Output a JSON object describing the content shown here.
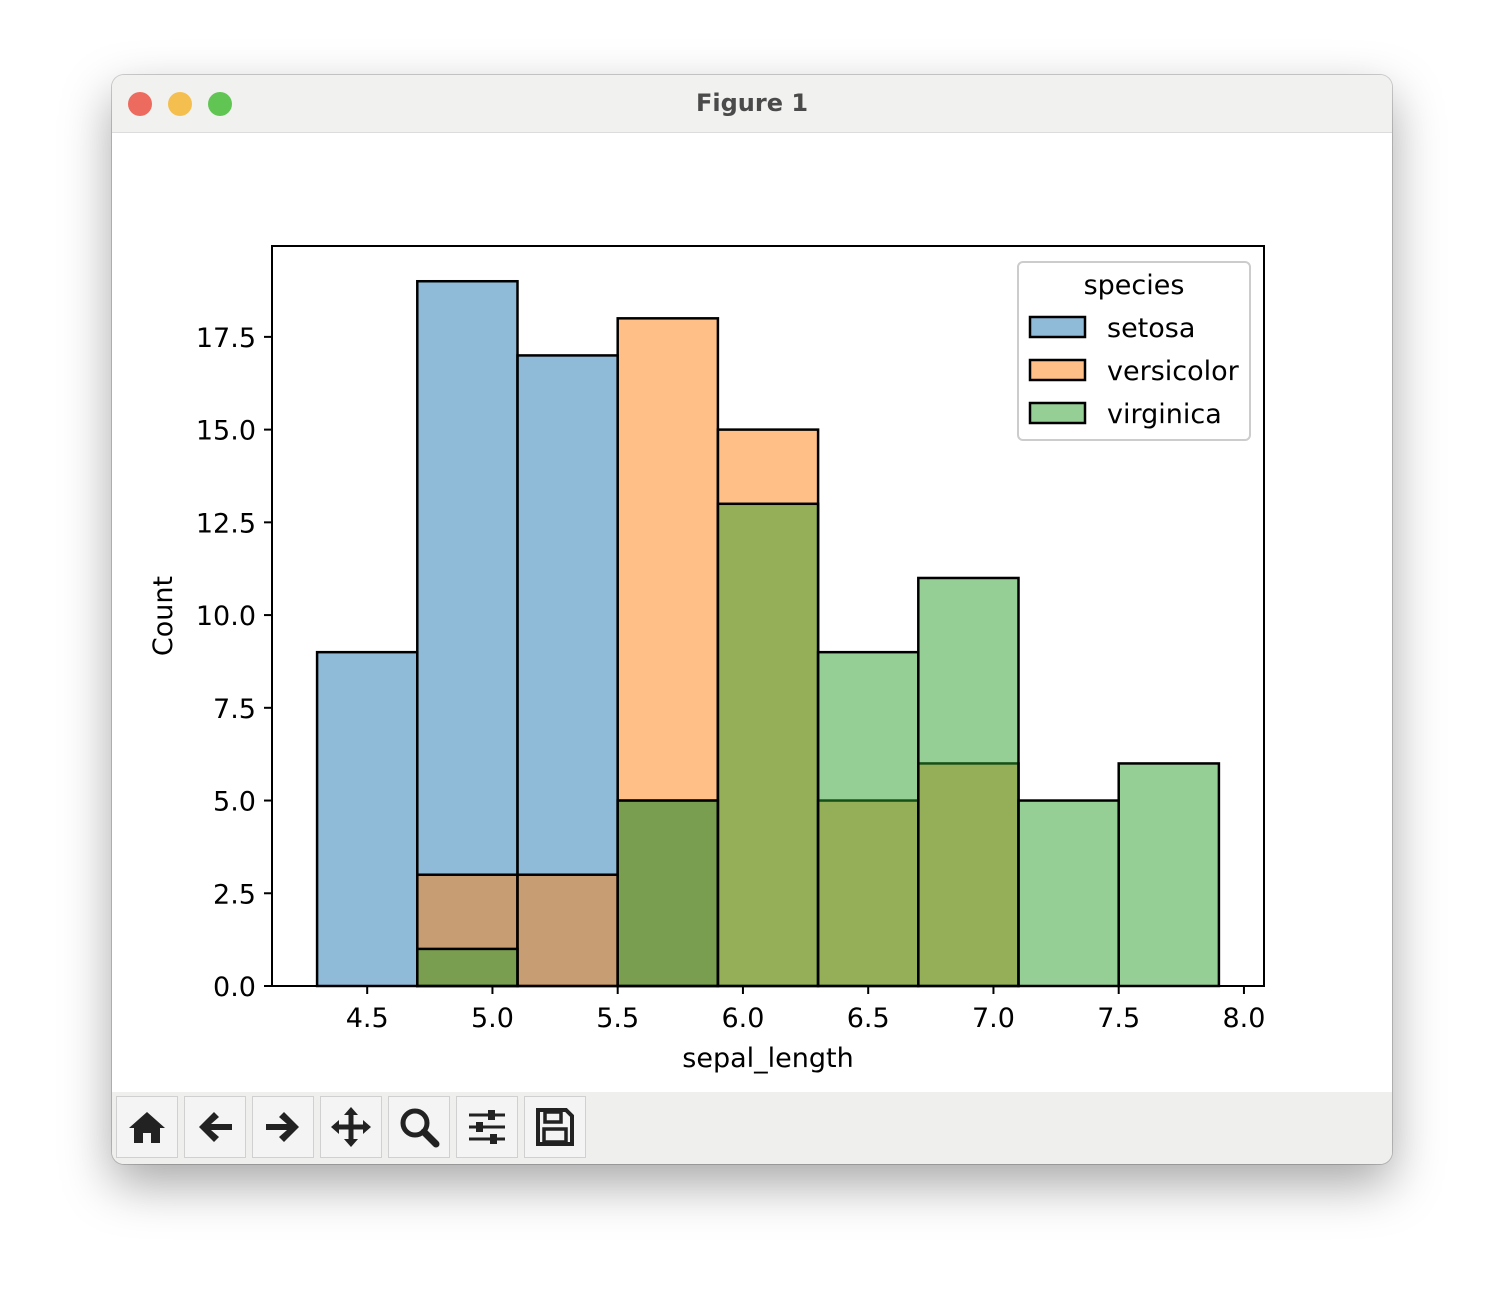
{
  "window": {
    "title": "Figure 1"
  },
  "toolbar": {
    "buttons": [
      {
        "name": "home-button",
        "icon": "home-icon"
      },
      {
        "name": "back-button",
        "icon": "arrow-left-icon"
      },
      {
        "name": "forward-button",
        "icon": "arrow-right-icon"
      },
      {
        "name": "pan-button",
        "icon": "move-icon"
      },
      {
        "name": "zoom-button",
        "icon": "magnifier-icon"
      },
      {
        "name": "configure-subplots-button",
        "icon": "sliders-icon"
      },
      {
        "name": "save-button",
        "icon": "floppy-disk-icon"
      }
    ]
  },
  "chart_data": {
    "type": "histogram",
    "xlabel": "sepal_length",
    "ylabel": "Count",
    "xlim": [
      4.12,
      8.08
    ],
    "ylim": [
      0,
      19.95
    ],
    "xticks": [
      "4.5",
      "5.0",
      "5.5",
      "6.0",
      "6.5",
      "7.0",
      "7.5",
      "8.0"
    ],
    "yticks": [
      "0.0",
      "2.5",
      "5.0",
      "7.5",
      "10.0",
      "12.5",
      "15.0",
      "17.5"
    ],
    "bin_edges": [
      4.3,
      4.7,
      5.1,
      5.5,
      5.9,
      6.3,
      6.7,
      7.1,
      7.5,
      7.9
    ],
    "legend": {
      "title": "species",
      "placement": "upper right"
    },
    "series": [
      {
        "name": "setosa",
        "color": "#1f77b4",
        "values": [
          9,
          19,
          17,
          5,
          0,
          0,
          0,
          0,
          0
        ]
      },
      {
        "name": "versicolor",
        "color": "#ff7f0e",
        "values": [
          0,
          3,
          3,
          18,
          15,
          5,
          6,
          0,
          0
        ]
      },
      {
        "name": "virginica",
        "color": "#2ca02c",
        "values": [
          0,
          1,
          0,
          5,
          13,
          9,
          11,
          5,
          6
        ]
      }
    ]
  }
}
